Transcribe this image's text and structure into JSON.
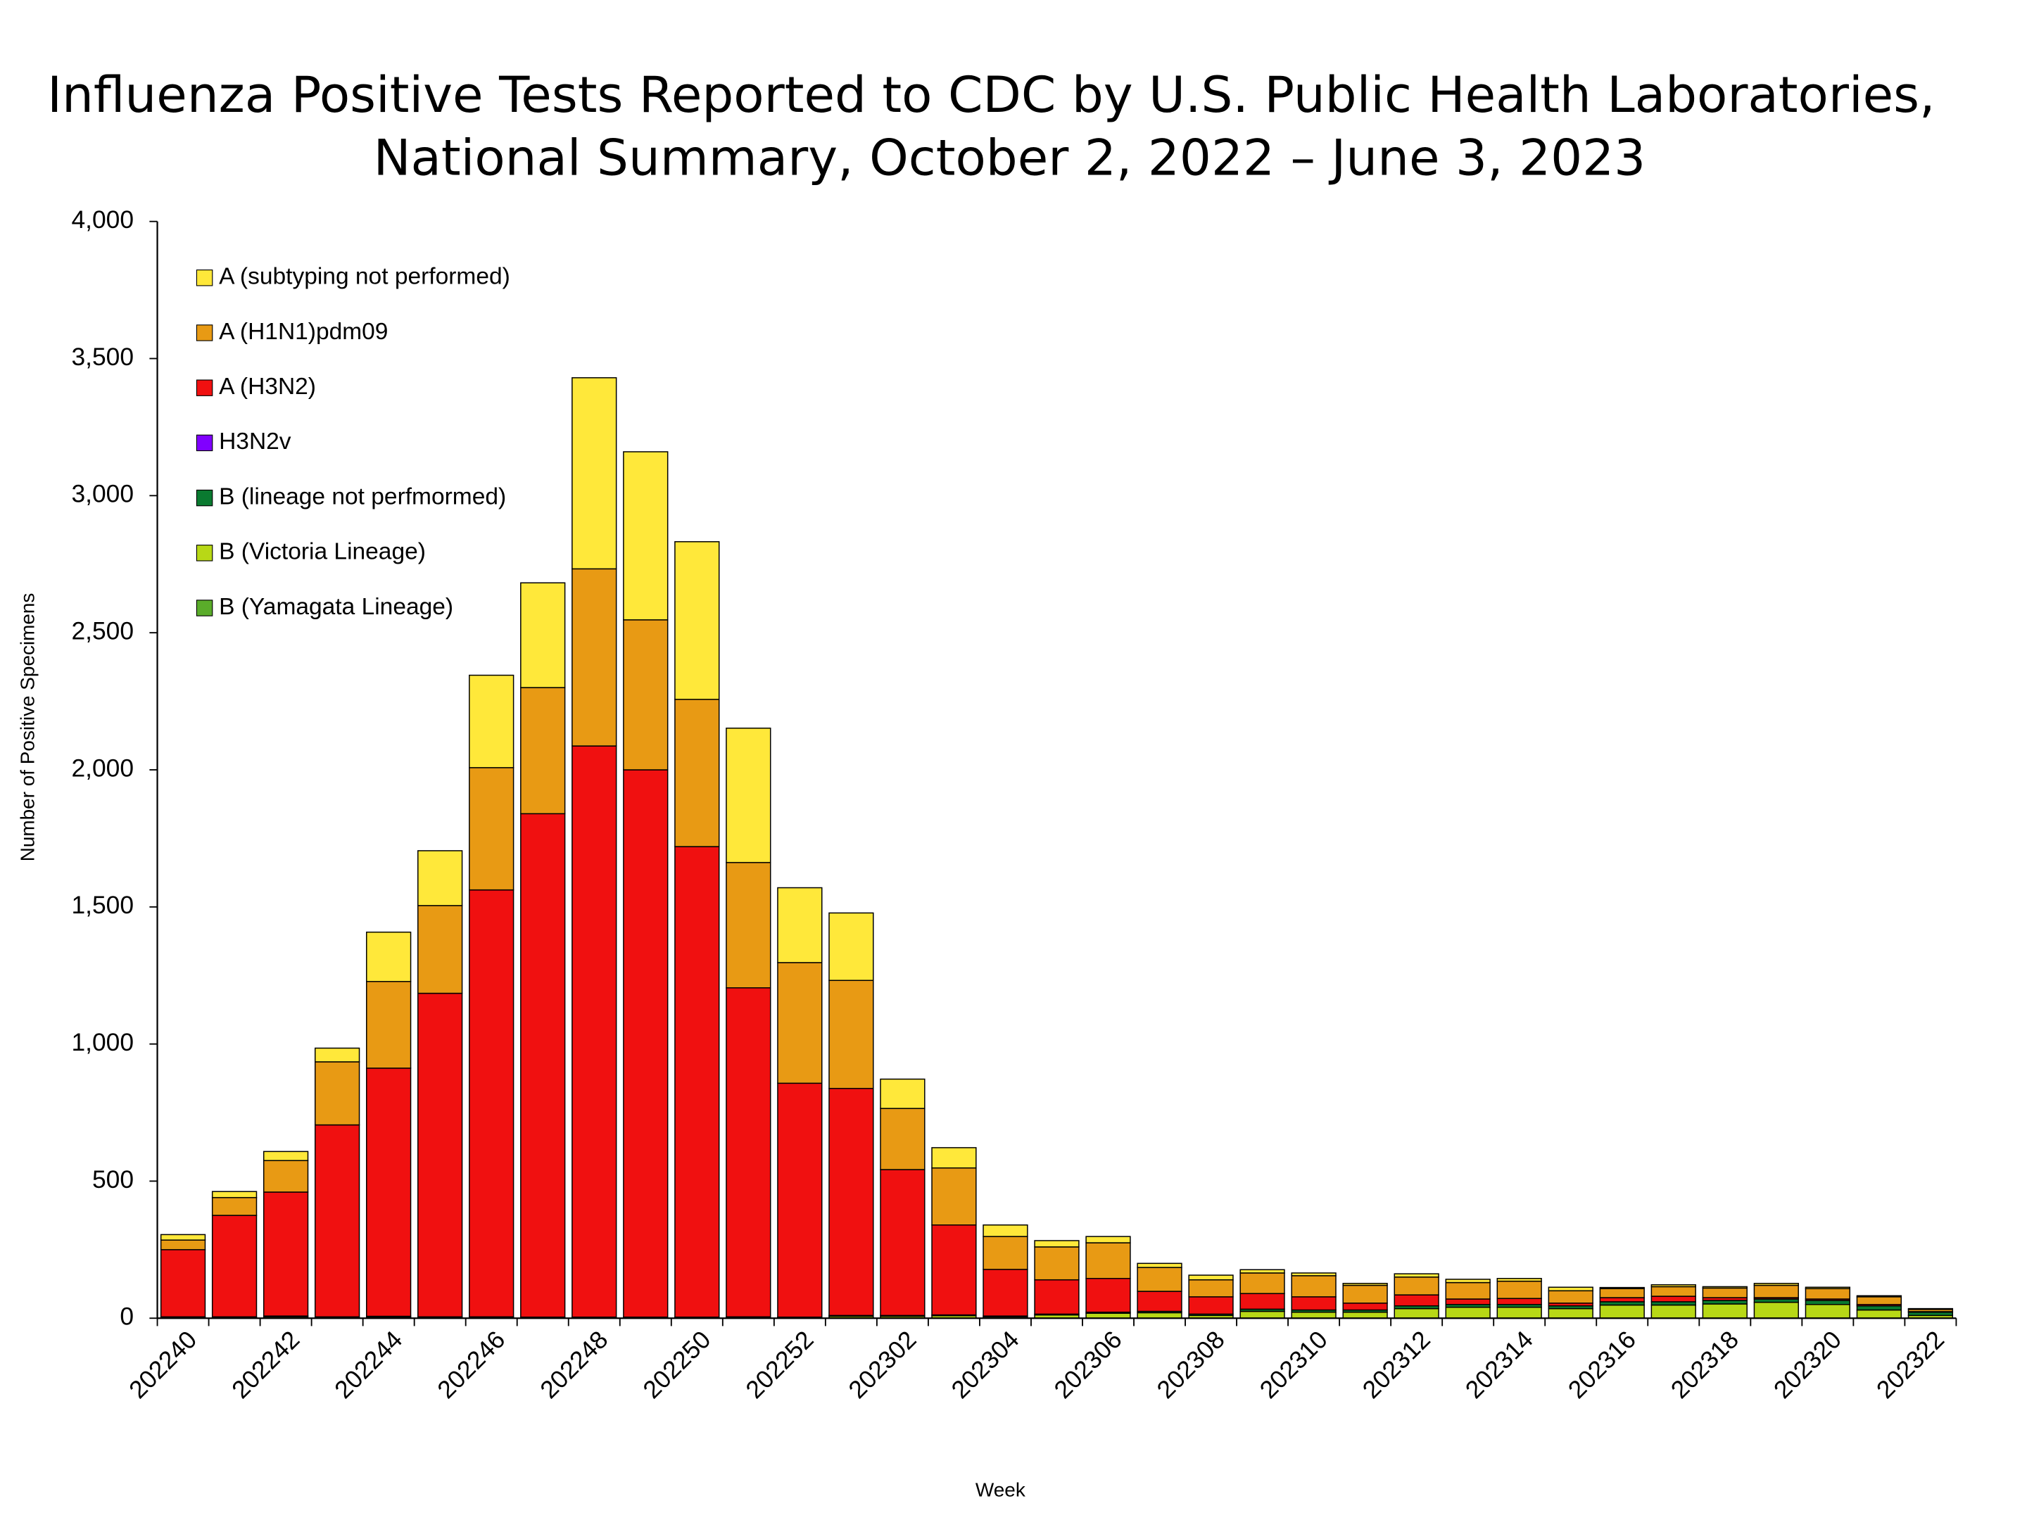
{
  "chart_data": {
    "type": "stacked-bar",
    "title": [
      "Influenza Positive Tests Reported to CDC by U.S. Public Health Laboratories,",
      "National Summary, October 2, 2022 – June 3, 2023"
    ],
    "x_label": "Week",
    "y_label": "Number of Positive Specimens",
    "categories": [
      "202240",
      null,
      "202242",
      null,
      "202244",
      null,
      "202246",
      null,
      "202248",
      null,
      "202250",
      null,
      "202252",
      null,
      "202302",
      null,
      "202304",
      null,
      "202306",
      null,
      "202308",
      null,
      "202310",
      null,
      "202312",
      null,
      "202314",
      null,
      "202316",
      null,
      "202318",
      null,
      "202320",
      null,
      "202322"
    ],
    "ylim": [
      0,
      4000
    ],
    "yticks": [
      0,
      500,
      {
        "value": 1000,
        "label": "1,000"
      },
      {
        "value": 1500,
        "label": "1,500"
      },
      {
        "value": 2000,
        "label": "2,000"
      },
      {
        "value": 2500,
        "label": "2,500"
      },
      {
        "value": 3000,
        "label": "3,000"
      },
      {
        "value": 3500,
        "label": "3,500"
      },
      {
        "value": 4000,
        "label": "4,000"
      }
    ],
    "legend": "upper-left",
    "series": [
      {
        "name": "B (Yamagata Lineage)",
        "color": "#5aac2a",
        "values": [
          0,
          0,
          0,
          0,
          0,
          0,
          0,
          0,
          0,
          0,
          0,
          0,
          0,
          0,
          0,
          0,
          0,
          0,
          0,
          0,
          0,
          0,
          0,
          0,
          0,
          0,
          0,
          0,
          0,
          0,
          0,
          0,
          0,
          0,
          0
        ]
      },
      {
        "name": "B (Victoria Lineage)",
        "color": "#b8d816",
        "values": [
          2,
          2,
          5,
          2,
          3,
          2,
          2,
          1,
          1,
          1,
          1,
          2,
          2,
          7,
          7,
          9,
          5,
          12,
          18,
          20,
          10,
          25,
          22,
          22,
          35,
          40,
          40,
          35,
          48,
          48,
          52,
          58,
          50,
          30,
          10
        ]
      },
      {
        "name": "B (lineage not perfmormed)",
        "color": "#0a7a30",
        "values": [
          3,
          3,
          3,
          3,
          4,
          3,
          3,
          3,
          3,
          3,
          3,
          3,
          2,
          3,
          3,
          3,
          3,
          3,
          4,
          5,
          5,
          8,
          8,
          8,
          10,
          10,
          10,
          10,
          12,
          12,
          13,
          12,
          15,
          15,
          12
        ]
      },
      {
        "name": "H3N2v",
        "color": "#8000ff",
        "values": [
          0,
          0,
          0,
          0,
          0,
          0,
          0,
          0,
          0,
          0,
          0,
          0,
          0,
          0,
          0,
          0,
          0,
          0,
          0,
          0,
          0,
          0,
          0,
          0,
          0,
          0,
          0,
          0,
          0,
          0,
          0,
          0,
          0,
          0,
          0
        ]
      },
      {
        "name": "A (H3N2)",
        "color": "#f01010",
        "values": [
          245,
          370,
          452,
          700,
          905,
          1180,
          1557,
          1836,
          2083,
          1996,
          1716,
          1200,
          853,
          828,
          532,
          328,
          170,
          125,
          123,
          73,
          63,
          57,
          48,
          25,
          40,
          20,
          22,
          10,
          15,
          20,
          10,
          5,
          5,
          5,
          2
        ]
      },
      {
        "name": "A (H1N1)pdm09",
        "color": "#e89a14",
        "values": [
          35,
          65,
          115,
          230,
          316,
          320,
          446,
          460,
          646,
          547,
          537,
          457,
          440,
          394,
          223,
          208,
          120,
          120,
          130,
          87,
          62,
          75,
          77,
          65,
          65,
          60,
          63,
          45,
          33,
          35,
          35,
          45,
          38,
          28,
          8
        ]
      },
      {
        "name": "A (subtyping not performed)",
        "color": "#ffe83a",
        "values": [
          20,
          22,
          33,
          50,
          180,
          200,
          337,
          382,
          697,
          613,
          575,
          490,
          273,
          246,
          107,
          74,
          42,
          23,
          23,
          15,
          17,
          12,
          10,
          7,
          12,
          12,
          10,
          13,
          4,
          7,
          5,
          7,
          5,
          4,
          3
        ]
      }
    ]
  }
}
